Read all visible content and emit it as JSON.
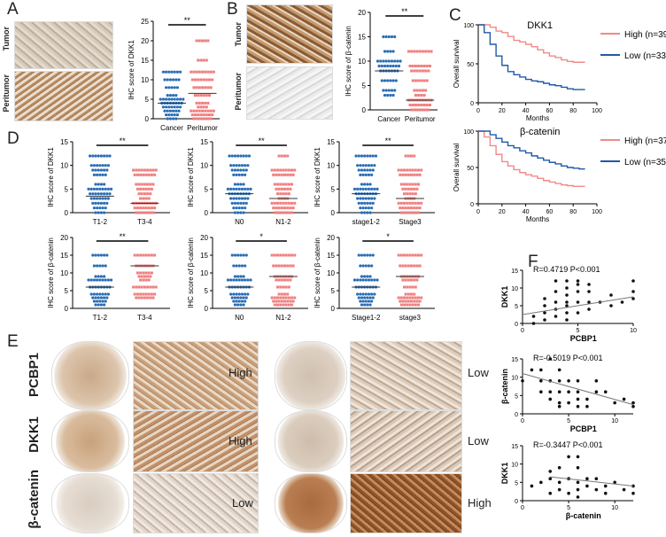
{
  "panels": {
    "A": "A",
    "B": "B",
    "C": "C",
    "D": "D",
    "E": "E",
    "F": "F"
  },
  "tissue_labels": {
    "tumor": "Tumor",
    "peritumor": "Peritumor"
  },
  "colors": {
    "blue": "#2a6db5",
    "red": "#f07f7f",
    "dark_blue": "#2455a4",
    "km_red": "#f08a8a",
    "km_blue": "#1f5aa8",
    "ihc_brown": "#b8865a",
    "ihc_light": "#e7dccf"
  },
  "row_labels": [
    "PCBP1",
    "DKK1",
    "β-catenin"
  ],
  "level_labels": {
    "left": [
      "High",
      "High",
      "Low"
    ],
    "right": [
      "Low",
      "Low",
      "High"
    ]
  },
  "chart_data": [
    {
      "id": "A",
      "type": "scatter",
      "title": "",
      "ylabel": "IHC score of DKK1",
      "categories": [
        "Cancer",
        "Peritumor"
      ],
      "ylim": [
        0,
        25
      ],
      "yticks": [
        0,
        5,
        10,
        15,
        20,
        25
      ],
      "colors": [
        "#2a6db5",
        "#f07f7f"
      ],
      "means": [
        4,
        6.5
      ],
      "sig": "**",
      "points": [
        [
          0,
          1,
          2,
          3,
          4,
          5,
          6,
          8,
          10,
          12
        ],
        [
          0,
          1,
          2,
          3,
          4,
          6,
          8,
          10,
          12,
          15,
          20
        ]
      ]
    },
    {
      "id": "B",
      "type": "scatter",
      "title": "",
      "ylabel": "IHC score of β-catenin",
      "categories": [
        "Cancer",
        "Peritumor"
      ],
      "ylim": [
        0,
        20
      ],
      "yticks": [
        0,
        5,
        10,
        15,
        20
      ],
      "colors": [
        "#2a6db5",
        "#f07f7f"
      ],
      "means": [
        8,
        2
      ],
      "sig": "**",
      "points": [
        [
          3,
          4,
          6,
          8,
          9,
          10,
          12,
          15
        ],
        [
          0,
          1,
          2,
          3,
          4,
          6,
          8,
          9,
          12
        ]
      ]
    },
    {
      "id": "C1",
      "type": "line",
      "title": "DKK1",
      "ylabel": "Overall survival",
      "xlabel": "Months",
      "xlim": [
        0,
        100
      ],
      "ylim": [
        0,
        100
      ],
      "xticks": [
        0,
        20,
        40,
        60,
        80,
        100
      ],
      "yticks": [
        0,
        50,
        100
      ],
      "series": [
        {
          "name": "High (n=39)",
          "color": "#f08a8a",
          "x": [
            0,
            5,
            10,
            15,
            20,
            25,
            30,
            35,
            40,
            45,
            50,
            55,
            60,
            65,
            70,
            75,
            80,
            85,
            90
          ],
          "y": [
            100,
            100,
            97,
            92,
            90,
            85,
            80,
            78,
            75,
            72,
            68,
            64,
            60,
            58,
            55,
            53,
            52,
            52,
            52
          ]
        },
        {
          "name": "Low (n=33)",
          "color": "#1f5aa8",
          "x": [
            0,
            5,
            10,
            15,
            20,
            25,
            30,
            35,
            40,
            45,
            50,
            55,
            60,
            65,
            70,
            75,
            80,
            85,
            90
          ],
          "y": [
            100,
            90,
            75,
            60,
            48,
            40,
            36,
            33,
            30,
            28,
            27,
            25,
            23,
            22,
            20,
            18,
            17,
            17,
            17
          ]
        }
      ]
    },
    {
      "id": "C2",
      "type": "line",
      "title": "β-catenin",
      "ylabel": "Overall survival",
      "xlabel": "Months",
      "xlim": [
        0,
        100
      ],
      "ylim": [
        0,
        100
      ],
      "xticks": [
        0,
        20,
        40,
        60,
        80,
        100
      ],
      "yticks": [
        0,
        50,
        100
      ],
      "series": [
        {
          "name": "High (n=37)",
          "color": "#f08a8a",
          "x": [
            0,
            5,
            10,
            15,
            20,
            25,
            30,
            35,
            40,
            45,
            50,
            55,
            60,
            65,
            70,
            75,
            80,
            85,
            90
          ],
          "y": [
            100,
            92,
            80,
            68,
            58,
            52,
            47,
            43,
            40,
            38,
            35,
            32,
            30,
            28,
            26,
            25,
            24,
            24,
            24
          ]
        },
        {
          "name": "Low (n=35)",
          "color": "#1f5aa8",
          "x": [
            0,
            5,
            10,
            15,
            20,
            25,
            30,
            35,
            40,
            45,
            50,
            55,
            60,
            65,
            70,
            75,
            80,
            85,
            90
          ],
          "y": [
            100,
            100,
            95,
            90,
            85,
            80,
            77,
            73,
            70,
            66,
            63,
            60,
            57,
            55,
            52,
            50,
            49,
            48,
            48
          ]
        }
      ]
    },
    {
      "id": "D1",
      "type": "scatter",
      "ylabel": "IHC score of DKK1",
      "categories": [
        "T1-2",
        "T3-4"
      ],
      "ylim": [
        0,
        15
      ],
      "yticks": [
        0,
        5,
        10,
        15
      ],
      "colors": [
        "#2a6db5",
        "#f07f7f"
      ],
      "means": [
        3.5,
        2
      ],
      "sig": "**",
      "points": [
        [
          0,
          1,
          2,
          3,
          4,
          5,
          6,
          8,
          9,
          10,
          12
        ],
        [
          0,
          1,
          2,
          3,
          4,
          5,
          6,
          8,
          9
        ]
      ]
    },
    {
      "id": "D2",
      "type": "scatter",
      "ylabel": "IHC score of DKK1",
      "categories": [
        "N0",
        "N1-2"
      ],
      "ylim": [
        0,
        15
      ],
      "yticks": [
        0,
        5,
        10,
        15
      ],
      "colors": [
        "#2a6db5",
        "#f07f7f"
      ],
      "means": [
        4,
        3
      ],
      "sig": "**",
      "points": [
        [
          0,
          1,
          2,
          3,
          4,
          5,
          6,
          8,
          9,
          10,
          12
        ],
        [
          0,
          1,
          2,
          3,
          4,
          5,
          6,
          8,
          9,
          12
        ]
      ]
    },
    {
      "id": "D3",
      "type": "scatter",
      "ylabel": "IHC score of DKK1",
      "categories": [
        "stage1-2",
        "Stage3"
      ],
      "ylim": [
        0,
        15
      ],
      "yticks": [
        0,
        5,
        10,
        15
      ],
      "colors": [
        "#2a6db5",
        "#f07f7f"
      ],
      "means": [
        4,
        3
      ],
      "sig": "**",
      "points": [
        [
          0,
          1,
          2,
          3,
          4,
          5,
          6,
          8,
          9,
          10,
          12
        ],
        [
          0,
          1,
          2,
          3,
          4,
          5,
          6,
          8,
          9,
          12
        ]
      ]
    },
    {
      "id": "D4",
      "type": "scatter",
      "ylabel": "IHC score of β-catenin",
      "categories": [
        "T1-2",
        "T3-4"
      ],
      "ylim": [
        0,
        20
      ],
      "yticks": [
        0,
        5,
        10,
        15,
        20
      ],
      "colors": [
        "#2a6db5",
        "#f07f7f"
      ],
      "means": [
        6,
        12
      ],
      "sig": "**",
      "points": [
        [
          1,
          2,
          3,
          4,
          6,
          8,
          9,
          12,
          15
        ],
        [
          3,
          4,
          6,
          8,
          9,
          10,
          12,
          15
        ]
      ]
    },
    {
      "id": "D5",
      "type": "scatter",
      "ylabel": "IHC score of β-catenin",
      "categories": [
        "N0",
        "N1-2"
      ],
      "ylim": [
        0,
        20
      ],
      "yticks": [
        0,
        5,
        10,
        15,
        20
      ],
      "colors": [
        "#2a6db5",
        "#f07f7f"
      ],
      "means": [
        6,
        9
      ],
      "sig": "*",
      "points": [
        [
          1,
          2,
          3,
          4,
          6,
          8,
          9,
          12,
          15
        ],
        [
          1,
          2,
          3,
          4,
          6,
          8,
          9,
          12,
          15
        ]
      ]
    },
    {
      "id": "D6",
      "type": "scatter",
      "ylabel": "IHC score of β-catenin",
      "categories": [
        "Stage1-2",
        "stage3"
      ],
      "ylim": [
        0,
        20
      ],
      "yticks": [
        0,
        5,
        10,
        15,
        20
      ],
      "colors": [
        "#2a6db5",
        "#f07f7f"
      ],
      "means": [
        6,
        9
      ],
      "sig": "*",
      "points": [
        [
          1,
          2,
          3,
          4,
          6,
          8,
          9,
          12,
          15
        ],
        [
          1,
          2,
          3,
          4,
          6,
          8,
          9,
          12,
          15
        ]
      ]
    },
    {
      "id": "F1",
      "type": "scatter",
      "ylabel": "DKK1",
      "xlabel": "PCBP1",
      "annotation": "R=0.4719 P<0.001",
      "xlim": [
        0,
        10
      ],
      "ylim": [
        0,
        15
      ],
      "xticks": [
        0,
        5,
        10
      ],
      "yticks": [
        0,
        5,
        10,
        15
      ],
      "trend": [
        [
          0,
          2.5
        ],
        [
          10,
          7.5
        ]
      ],
      "x": [
        1,
        1,
        2,
        2,
        2,
        3,
        3,
        3,
        3,
        4,
        4,
        4,
        4,
        4,
        5,
        5,
        5,
        5,
        6,
        6,
        6,
        7,
        8,
        8,
        9,
        10,
        10,
        10,
        3,
        4,
        5,
        2,
        6,
        4
      ],
      "y": [
        0,
        2,
        1,
        3,
        5,
        2,
        4,
        6,
        9,
        1,
        3,
        5,
        8,
        12,
        3,
        6,
        9,
        12,
        4,
        6,
        9,
        6,
        5,
        8,
        6,
        7,
        9,
        12,
        12,
        10,
        11,
        7,
        11,
        6
      ]
    },
    {
      "id": "F2",
      "type": "scatter",
      "ylabel": "β-catenin",
      "xlabel": "PCBP1",
      "annotation": "R=-0.5019 P<0.001",
      "xlim": [
        0,
        12
      ],
      "ylim": [
        0,
        15
      ],
      "xticks": [
        0,
        5,
        10
      ],
      "yticks": [
        0,
        5,
        10,
        15
      ],
      "trend": [
        [
          0,
          11
        ],
        [
          12,
          2.5
        ]
      ],
      "x": [
        0,
        1,
        2,
        2,
        3,
        3,
        3,
        4,
        4,
        4,
        4,
        5,
        5,
        5,
        6,
        6,
        6,
        6,
        7,
        7,
        8,
        8,
        9,
        10,
        11,
        12,
        12,
        2,
        3,
        4
      ],
      "y": [
        9,
        12,
        9,
        12,
        6,
        9,
        15,
        3,
        6,
        9,
        12,
        3,
        6,
        9,
        2,
        4,
        6,
        9,
        2,
        4,
        6,
        9,
        6,
        3,
        4,
        3,
        2,
        6,
        4,
        2
      ]
    },
    {
      "id": "F3",
      "type": "scatter",
      "ylabel": "DKK1",
      "xlabel": "β-catenin",
      "annotation": "R=-0.3447 P<0.001",
      "xlim": [
        0,
        12
      ],
      "ylim": [
        0,
        15
      ],
      "xticks": [
        0,
        5,
        10
      ],
      "yticks": [
        0,
        5,
        10,
        15
      ],
      "trend": [
        [
          3,
          6.5
        ],
        [
          12,
          4
        ]
      ],
      "x": [
        1,
        2,
        3,
        3,
        4,
        4,
        4,
        5,
        5,
        5,
        6,
        6,
        6,
        6,
        7,
        7,
        8,
        8,
        9,
        9,
        10,
        11,
        12,
        12,
        3,
        5,
        6
      ],
      "y": [
        4,
        5,
        2,
        6,
        3,
        5,
        9,
        2,
        6,
        12,
        3,
        5,
        9,
        12,
        4,
        6,
        3,
        6,
        2,
        4,
        5,
        3,
        2,
        4,
        8,
        6,
        1
      ]
    }
  ]
}
